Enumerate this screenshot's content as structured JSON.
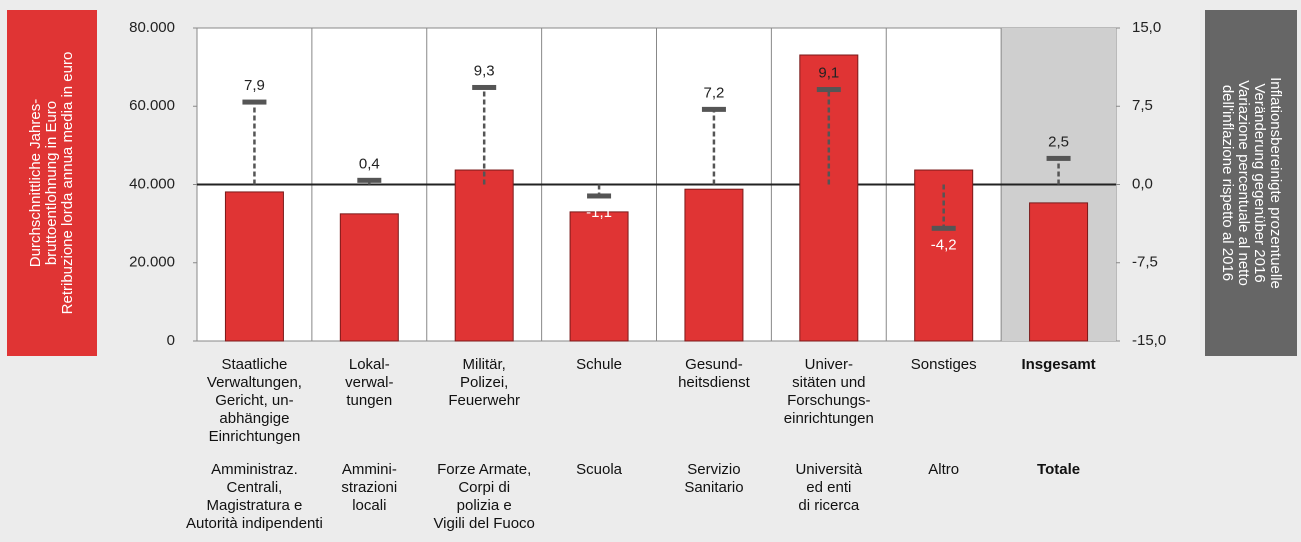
{
  "chart_data": {
    "type": "bar",
    "categories": [
      "Staatliche\nVerwaltungen,\nGericht, un-\nabhängige\nEinrichtungen",
      "Lokal-\nverwal-\ntungen",
      "Militär,\nPolizei,\nFeuerwehr",
      "Schule",
      "Gesund-\nheitsdienst",
      "Univer-\nsitäten und\nForschungs-\neinrichtungen",
      "Sonstiges",
      "Insgesamt"
    ],
    "categories_it": [
      "Amministraz.\nCentrali,\nMagistratura e\nAutorità indipendenti",
      "Ammini-\nstrazioni\nlocali",
      "Forze Armate,\nCorpi di\npolizia e\nVigili del Fuoco",
      "Scuola",
      "Servizio\nSanitario",
      "Università\ned enti\ndi ricerca",
      "Altro",
      "Totale"
    ],
    "y_label": "Durchschnittliche Jahres-\nbruttoentlohnung in Euro\nRetribuzione lorda annua media in euro",
    "y2_label": "Inflationsbereinigte prozentuelle\nVeränderung gegenüber 2016\nVariazione percentuale al netto\ndell'inflazione rispetto al 2016",
    "series": [
      {
        "color": "#e03434",
        "values": [
          38100,
          32500,
          43700,
          33000,
          38800,
          73100,
          43700,
          35300
        ]
      },
      {
        "axis": "y2",
        "style": "marker",
        "color": "#555555",
        "values": [
          7.9,
          0.4,
          9.3,
          -1.1,
          7.2,
          9.1,
          -4.2,
          2.5
        ],
        "value_labels": [
          "7,9",
          "0,4",
          "9,3",
          "-1,1",
          "7,2",
          "9,1",
          "-4,2",
          "2,5"
        ]
      }
    ],
    "ylim": [
      0,
      80000
    ],
    "yticks": [
      0,
      {
        "value": 20000,
        "label": "20.000"
      },
      {
        "value": 40000,
        "label": "40.000"
      },
      {
        "value": 60000,
        "label": "60.000"
      },
      {
        "value": 80000,
        "label": "80.000"
      }
    ],
    "y2lim": [
      -15,
      15
    ],
    "y2ticks": [
      {
        "value": -15,
        "label": "-15,0"
      },
      {
        "value": -7.5,
        "label": "-7,5"
      },
      {
        "value": 0,
        "label": "0,0"
      },
      {
        "value": 7.5,
        "label": "7,5"
      },
      {
        "value": 15,
        "label": "15,0"
      }
    ],
    "highlight_last": true,
    "grid": true
  }
}
